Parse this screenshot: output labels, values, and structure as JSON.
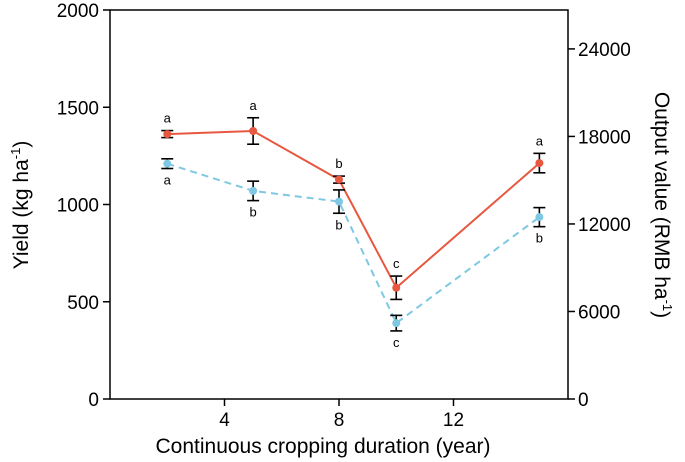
{
  "chart_data": {
    "type": "line",
    "x": [
      2,
      5,
      8,
      10,
      15
    ],
    "xlabel": "Continuous cropping duration (year)",
    "xlim": [
      0,
      16
    ],
    "xticks": [
      4,
      8,
      12
    ],
    "left_axis": {
      "label": "Yield (kg ha",
      "label_sup": "-1",
      "label_end": ")",
      "ylim": [
        0,
        2000
      ],
      "ticks": [
        0,
        500,
        1000,
        1500,
        2000
      ]
    },
    "right_axis": {
      "label": "Output value (RMB ha",
      "label_sup": "-1",
      "label_end": ")",
      "ylim": [
        0,
        26667
      ],
      "ticks": [
        0,
        6000,
        12000,
        18000,
        24000
      ]
    },
    "series": [
      {
        "name": "Yield",
        "axis": "left",
        "style": "solid",
        "color": "#e8573f",
        "values": [
          1362,
          1378,
          1128,
          572,
          1213
        ],
        "errors": [
          18,
          68,
          18,
          60,
          50
        ],
        "letters": [
          "a",
          "a",
          "b",
          "c",
          "a"
        ],
        "letter_pos": [
          "above",
          "above",
          "above",
          "above",
          "above"
        ]
      },
      {
        "name": "Output value",
        "axis": "right",
        "style": "dashed",
        "color": "#7ec8e3",
        "values": [
          16133,
          14267,
          13533,
          5200,
          12467
        ],
        "errors": [
          333,
          667,
          800,
          533,
          653
        ],
        "letters": [
          "a",
          "b",
          "b",
          "c",
          "b"
        ],
        "letter_pos": [
          "below",
          "below",
          "below",
          "below",
          "below"
        ]
      }
    ]
  }
}
